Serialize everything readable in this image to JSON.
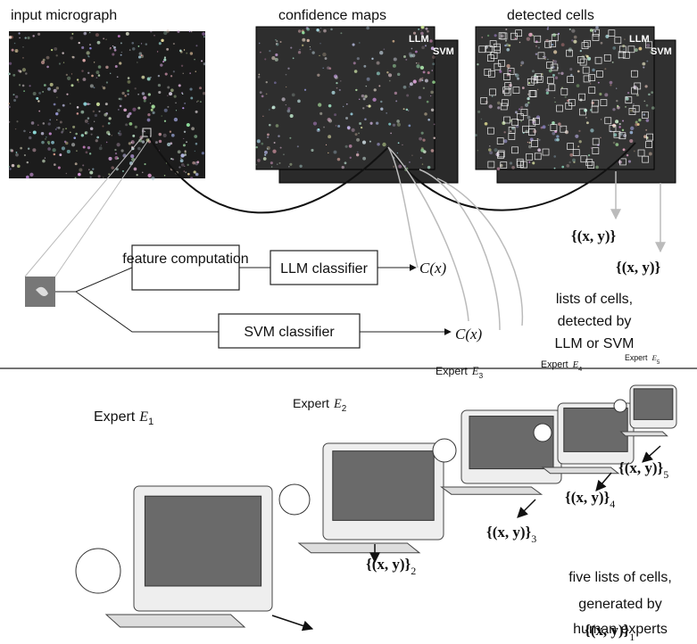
{
  "top": {
    "panels": [
      {
        "label": "input micrograph"
      },
      {
        "label": "confidence maps",
        "overlays": [
          "LLM",
          "SVM"
        ]
      },
      {
        "label": "detected cells",
        "overlays": [
          "LLM",
          "SVM"
        ]
      }
    ],
    "boxes": [
      "feature computation",
      "LLM classifier",
      "SVM classifier"
    ],
    "scores": [
      "C(x)",
      "C(x)"
    ],
    "outputs": [
      "{(x, y)}",
      "{(x, y)}"
    ],
    "caption": [
      "lists of cells,",
      "detected by",
      "LLM or SVM"
    ]
  },
  "bottom": {
    "experts": [
      {
        "label": "Expert",
        "symbol": "E",
        "index": "1",
        "output": "{(x, y)}"
      },
      {
        "label": "Expert",
        "symbol": "E",
        "index": "2",
        "output": "{(x, y)}"
      },
      {
        "label": "Expert",
        "symbol": "E",
        "index": "3",
        "output": "{(x, y)}"
      },
      {
        "label": "Expert",
        "symbol": "E",
        "index": "4",
        "output": "{(x, y)}"
      },
      {
        "label": "Expert",
        "symbol": "E",
        "index": "5",
        "output": "{(x, y)}"
      }
    ],
    "caption": [
      "five lists of cells,",
      "generated by",
      "human experts"
    ]
  }
}
